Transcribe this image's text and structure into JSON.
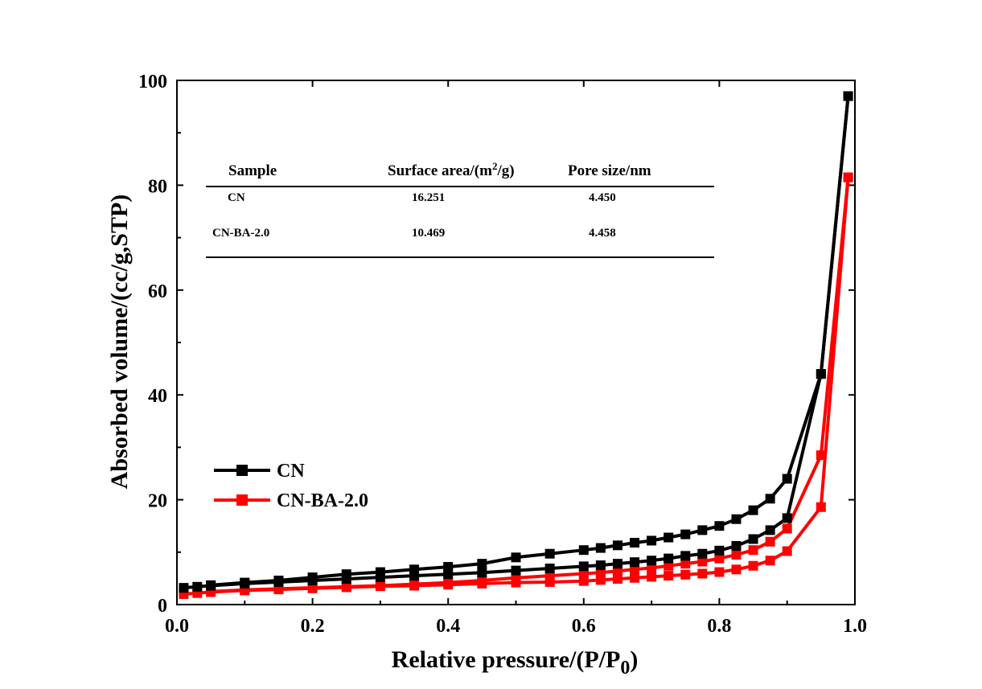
{
  "chart_data": {
    "type": "line",
    "title": "",
    "xlabel": "Relative pressure/(P/P",
    "xlabel_sub": "0",
    "xlabel_close": ")",
    "ylabel": "Absorbed volume/(cc/g,STP)",
    "xlim": [
      0.0,
      1.0
    ],
    "ylim": [
      0,
      100
    ],
    "xticks": [
      "0.0",
      "0.2",
      "0.4",
      "0.6",
      "0.8",
      "1.0"
    ],
    "yticks": [
      "0",
      "20",
      "40",
      "60",
      "80",
      "100"
    ],
    "grid": false,
    "legend_position": "bottom-left",
    "series": [
      {
        "name": "CN",
        "color": "#000000",
        "adsorption": {
          "x": [
            0.01,
            0.03,
            0.05,
            0.1,
            0.15,
            0.2,
            0.25,
            0.3,
            0.35,
            0.4,
            0.45,
            0.5,
            0.55,
            0.6,
            0.625,
            0.65,
            0.675,
            0.7,
            0.725,
            0.75,
            0.775,
            0.8,
            0.825,
            0.85,
            0.875,
            0.9,
            0.95,
            0.99
          ],
          "y": [
            3.2,
            3.4,
            3.6,
            4.0,
            4.3,
            4.6,
            4.9,
            5.2,
            5.5,
            5.8,
            6.1,
            6.5,
            6.9,
            7.3,
            7.5,
            7.8,
            8.1,
            8.4,
            8.8,
            9.3,
            9.7,
            10.3,
            11.2,
            12.5,
            14.2,
            16.5,
            44,
            97
          ]
        },
        "desorption": {
          "x": [
            0.99,
            0.95,
            0.9,
            0.875,
            0.85,
            0.825,
            0.8,
            0.775,
            0.75,
            0.725,
            0.7,
            0.675,
            0.65,
            0.625,
            0.6,
            0.55,
            0.5,
            0.45,
            0.4,
            0.35,
            0.3,
            0.25,
            0.2,
            0.15,
            0.1,
            0.05
          ],
          "y": [
            97,
            44,
            24,
            20.2,
            18.0,
            16.3,
            15.0,
            14.2,
            13.4,
            12.8,
            12.2,
            11.8,
            11.3,
            10.8,
            10.4,
            9.7,
            9.0,
            7.8,
            7.2,
            6.7,
            6.2,
            5.8,
            5.2,
            4.6,
            4.2,
            3.7
          ]
        }
      },
      {
        "name": "CN-BA-2.0",
        "color": "#ff0000",
        "adsorption": {
          "x": [
            0.01,
            0.03,
            0.05,
            0.1,
            0.15,
            0.2,
            0.25,
            0.3,
            0.35,
            0.4,
            0.45,
            0.5,
            0.55,
            0.6,
            0.625,
            0.65,
            0.675,
            0.7,
            0.725,
            0.75,
            0.775,
            0.8,
            0.825,
            0.85,
            0.875,
            0.9,
            0.95,
            0.99
          ],
          "y": [
            2.0,
            2.2,
            2.4,
            2.7,
            2.9,
            3.1,
            3.3,
            3.5,
            3.6,
            3.8,
            4.0,
            4.2,
            4.3,
            4.5,
            4.7,
            4.9,
            5.1,
            5.3,
            5.5,
            5.7,
            5.9,
            6.2,
            6.7,
            7.4,
            8.4,
            10.2,
            18.6,
            81.5
          ]
        },
        "desorption": {
          "x": [
            0.99,
            0.95,
            0.9,
            0.875,
            0.85,
            0.825,
            0.8,
            0.775,
            0.75,
            0.725,
            0.7,
            0.675,
            0.65,
            0.625,
            0.6,
            0.55,
            0.5,
            0.45,
            0.4,
            0.35,
            0.3,
            0.25,
            0.2,
            0.15,
            0.1,
            0.05
          ],
          "y": [
            81.5,
            28.5,
            14.5,
            12.0,
            10.4,
            9.5,
            8.8,
            8.2,
            7.8,
            7.4,
            7.0,
            6.7,
            6.4,
            6.1,
            5.9,
            5.5,
            5.1,
            4.6,
            4.2,
            3.9,
            3.6,
            3.4,
            3.2,
            3.0,
            2.8,
            2.5
          ]
        }
      }
    ],
    "table": {
      "headers": [
        "Sample",
        "Surface area/(m",
        "2",
        "/g)",
        "Pore size/nm"
      ],
      "rows": [
        [
          "CN",
          "16.251",
          "4.450"
        ],
        [
          "CN-BA-2.0",
          "10.469",
          "4.458"
        ]
      ]
    }
  }
}
